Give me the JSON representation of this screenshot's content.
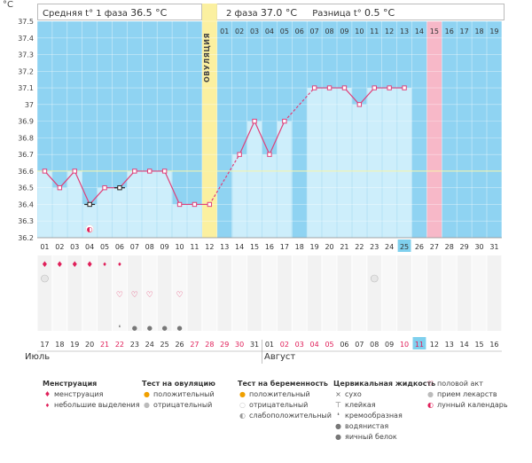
{
  "header": {
    "unit": "°C",
    "phase1_label": "Средняя t° 1 фаза",
    "phase1_value": "36.5 °C",
    "phase2_label": "2 фаза",
    "phase2_value": "37.0 °C",
    "diff_label": "Разница t°",
    "diff_value": "0.5 °C"
  },
  "ovulation_label": "ОВУЛЯЦИЯ",
  "chart_data": {
    "type": "line",
    "ylim": [
      36.2,
      37.5
    ],
    "yticks": [
      "37.5",
      "37.4",
      "37.3",
      "37.2",
      "37.1",
      "37",
      "36.9",
      "36.8",
      "36.7",
      "36.6",
      "36.5",
      "36.4",
      "36.3",
      "36.2"
    ],
    "top_days": [
      "01",
      "02",
      "03",
      "04",
      "05",
      "06",
      "07",
      "08",
      "09",
      "10",
      "11",
      "12",
      "13",
      "14",
      "15",
      "16",
      "17",
      "18",
      "19"
    ],
    "cycle_days": [
      "01",
      "02",
      "03",
      "04",
      "05",
      "06",
      "07",
      "08",
      "09",
      "10",
      "11",
      "12",
      "13",
      "14",
      "15",
      "16",
      "17",
      "18",
      "19",
      "20",
      "21",
      "22",
      "23",
      "24",
      "25",
      "26",
      "27",
      "28",
      "29",
      "30",
      "31"
    ],
    "current_cycle_day": "25",
    "series": [
      {
        "values": [
          36.6,
          36.5,
          36.6,
          36.4,
          36.5,
          36.5,
          36.6,
          36.6,
          36.6,
          36.4,
          36.4,
          36.4,
          null,
          36.7,
          36.9,
          36.7,
          36.9,
          null,
          37.1,
          37.1,
          37.1,
          37.0,
          37.1,
          37.1,
          37.1,
          null,
          null,
          null,
          null,
          null,
          null
        ]
      }
    ],
    "coverline": 36.6,
    "ovulation_day": 12,
    "next_period_day": 27,
    "calendar_dates": [
      "17",
      "18",
      "19",
      "20",
      "21",
      "22",
      "23",
      "24",
      "25",
      "26",
      "27",
      "28",
      "29",
      "30",
      "31",
      "01",
      "02",
      "03",
      "04",
      "05",
      "06",
      "07",
      "08",
      "09",
      "10",
      "11",
      "12",
      "13",
      "14",
      "15",
      "16"
    ],
    "weekend_dates": [
      4,
      5,
      10,
      11,
      12,
      13,
      16,
      17,
      18,
      19,
      24,
      25
    ],
    "current_date_index": 25,
    "months": [
      "Июль",
      "Август"
    ],
    "menstruation_days": {
      "heavy": [
        1,
        2,
        3,
        4
      ],
      "light": [
        5,
        6
      ]
    },
    "ovulation_test_negative_days": [
      1,
      23
    ],
    "intercourse_days": [
      6,
      7,
      8,
      10
    ],
    "pill_day": 4,
    "cervical_days": {
      "creamy": [
        6
      ],
      "watery": [
        7,
        8,
        9,
        10
      ]
    }
  },
  "legend": {
    "menstruation": {
      "title": "Менструация",
      "items": [
        "менструация",
        "небольшие выделения"
      ]
    },
    "ovulation_test": {
      "title": "Тест на овуляцию",
      "items": [
        "положительный",
        "отрицательный"
      ]
    },
    "pregnancy_test": {
      "title": "Тест на беременность",
      "items": [
        "положительный",
        "отрицательный",
        "слабоположительный"
      ]
    },
    "cervical_fluid": {
      "title": "Цервикальная жидкость",
      "items": [
        "сухо",
        "клейкая",
        "кремообразная",
        "водянистая",
        "яичный белок"
      ]
    },
    "other": {
      "items": [
        "половой акт",
        "прием лекарств",
        "лунный календарь"
      ]
    }
  },
  "colors": {
    "sky": "#8fd3f2",
    "bar": "#cdeefb",
    "line": "#e0407a",
    "ovulation": "#fbf0a0",
    "period": "#f7b8c8",
    "weekend": "#e0205a",
    "highlight": "#7fd0ee"
  }
}
